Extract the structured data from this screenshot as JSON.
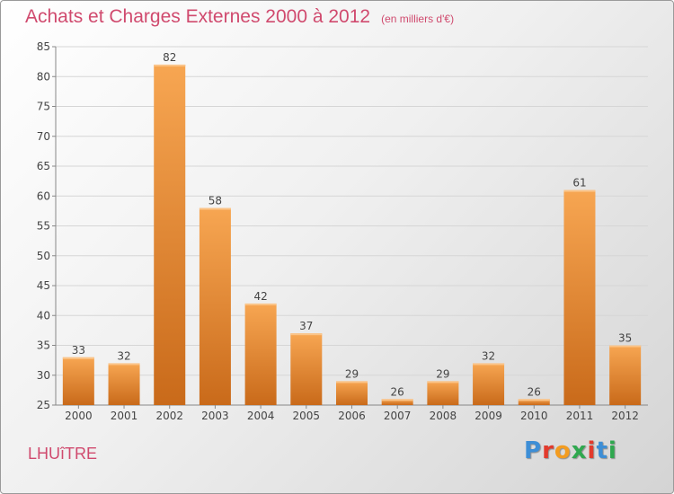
{
  "header": {
    "title": "Achats et Charges Externes 2000 à 2012",
    "subtitle": "(en milliers d'€)"
  },
  "footer": {
    "commune": "LHUîTRE",
    "brand": "Proxiti"
  },
  "colors": {
    "title": "#d04a6e",
    "bar_light": "#f7a652",
    "bar_dark": "#c96a1a",
    "brand_letters": [
      "#3d8ed6",
      "#e23a2c",
      "#f39c20",
      "#2fa84f",
      "#e23a2c",
      "#3d8ed6",
      "#2fa84f"
    ]
  },
  "chart_data": {
    "type": "bar",
    "title": "Achats et Charges Externes 2000 à 2012",
    "subtitle": "(en milliers d'€)",
    "categories": [
      "2000",
      "2001",
      "2002",
      "2003",
      "2004",
      "2005",
      "2006",
      "2007",
      "2008",
      "2009",
      "2010",
      "2011",
      "2012"
    ],
    "values": [
      33,
      32,
      82,
      58,
      42,
      37,
      29,
      26,
      29,
      32,
      26,
      61,
      35
    ],
    "ylim": [
      25,
      85
    ],
    "yticks": [
      25,
      30,
      35,
      40,
      45,
      50,
      55,
      60,
      65,
      70,
      75,
      80,
      85
    ],
    "grid": true,
    "data_labels": true
  }
}
